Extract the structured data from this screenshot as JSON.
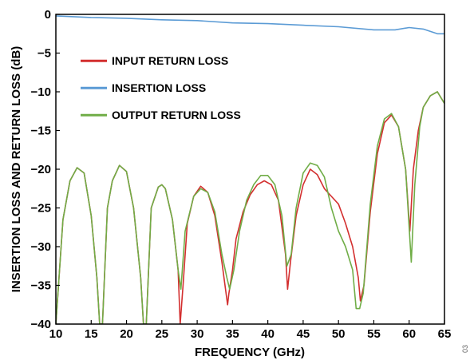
{
  "figure_id": "03",
  "chart_data": {
    "type": "line",
    "xlabel": "FREQUENCY (GHz)",
    "ylabel": "INSERTION LOSS AND RETURN LOSS (dB)",
    "xlim": [
      10,
      65
    ],
    "ylim": [
      -40,
      0
    ],
    "xticks": [
      10,
      15,
      20,
      25,
      30,
      35,
      40,
      45,
      50,
      55,
      60,
      65
    ],
    "yticks": [
      0,
      -5,
      -10,
      -15,
      -20,
      -25,
      -30,
      -35,
      -40
    ],
    "ytick_labels": [
      "0",
      "−5",
      "−10",
      "−15",
      "−20",
      "−25",
      "−30",
      "−35",
      "−40"
    ],
    "grid": false,
    "legend_position": "top-left",
    "series": [
      {
        "name": "INPUT RETURN LOSS",
        "color": "#d32f2f",
        "x": [
          10,
          11,
          12,
          13,
          14,
          15,
          15.8,
          16.2,
          16.6,
          17.3,
          18,
          19,
          20,
          21,
          22,
          22.4,
          22.8,
          23.5,
          24.5,
          25,
          25.5,
          26.5,
          27.3,
          27.6,
          28,
          28.6,
          29.5,
          30.5,
          31.5,
          32.5,
          33.5,
          34.3,
          34.5,
          35,
          35.5,
          36.5,
          37.5,
          38.5,
          39.5,
          40.5,
          41.5,
          42.5,
          42.8,
          43.2,
          44,
          45,
          46,
          47,
          48,
          49,
          50,
          51,
          52,
          52.8,
          53.1,
          53.6,
          54.5,
          55.5,
          56.5,
          57.5,
          58.5,
          59.5,
          60.1,
          60.6,
          61.3,
          62,
          63,
          64,
          65
        ],
        "y": [
          -40,
          -26.5,
          -21.5,
          -19.8,
          -20.5,
          -26,
          -34,
          -40,
          -40,
          -25,
          -21.5,
          -19.5,
          -20.3,
          -25,
          -34,
          -40,
          -40,
          -25,
          -22.3,
          -22,
          -22.5,
          -26.5,
          -33,
          -40,
          -35,
          -27,
          -23.5,
          -22.2,
          -23,
          -26,
          -32,
          -37.5,
          -36,
          -33,
          -29,
          -25.5,
          -23.3,
          -22,
          -21.5,
          -22,
          -24,
          -31,
          -35.5,
          -32,
          -26,
          -22,
          -20,
          -20.7,
          -22.5,
          -23.5,
          -24.5,
          -27,
          -30,
          -34,
          -37,
          -35,
          -25.5,
          -18,
          -14,
          -13,
          -14.5,
          -20,
          -28,
          -20,
          -15,
          -12,
          -10.5,
          -10,
          -11.5
        ]
      },
      {
        "name": "INSERTION LOSS",
        "color": "#5b9bd5",
        "x": [
          10,
          15,
          20,
          25,
          30,
          35,
          40,
          45,
          50,
          55,
          58,
          60,
          62,
          64,
          65
        ],
        "y": [
          -0.2,
          -0.4,
          -0.5,
          -0.7,
          -0.8,
          -1.1,
          -1.2,
          -1.4,
          -1.6,
          -2.0,
          -2.0,
          -1.7,
          -1.9,
          -2.5,
          -2.5
        ]
      },
      {
        "name": "OUTPUT RETURN LOSS",
        "color": "#70ad47",
        "x": [
          10,
          11,
          12,
          13,
          14,
          15,
          15.8,
          16.2,
          16.6,
          17.3,
          18,
          19,
          20,
          21,
          22,
          22.4,
          22.8,
          23.5,
          24.5,
          25,
          25.5,
          26.5,
          27.3,
          27.7,
          28.3,
          29.5,
          30.5,
          31.5,
          32.5,
          33.5,
          34.2,
          34.6,
          35.2,
          36,
          37,
          38,
          39,
          40,
          41,
          42,
          42.7,
          43.3,
          44,
          45,
          46,
          47,
          48,
          49,
          50,
          51,
          52,
          52.5,
          53,
          53.5,
          54.5,
          55.5,
          56.5,
          57.5,
          58.5,
          59.5,
          60.3,
          60.8,
          61.5,
          62,
          63,
          64,
          65
        ],
        "y": [
          -40,
          -26.5,
          -21.5,
          -19.8,
          -20.5,
          -26,
          -34,
          -40,
          -40,
          -25,
          -21.5,
          -19.5,
          -20.3,
          -25,
          -34,
          -40,
          -40,
          -25,
          -22.3,
          -22,
          -22.5,
          -26.5,
          -33,
          -35.5,
          -28,
          -23.5,
          -22.5,
          -23,
          -25.5,
          -31,
          -34,
          -35.5,
          -33,
          -28,
          -24,
          -22,
          -20.8,
          -20.8,
          -22,
          -26,
          -32.5,
          -31,
          -25,
          -20.5,
          -19.2,
          -19.5,
          -21,
          -25,
          -28,
          -30,
          -33,
          -38,
          -38,
          -36,
          -24.5,
          -17,
          -13.5,
          -12.8,
          -14.5,
          -20,
          -32,
          -22,
          -14.5,
          -12,
          -10.5,
          -10,
          -11.5
        ]
      }
    ]
  }
}
